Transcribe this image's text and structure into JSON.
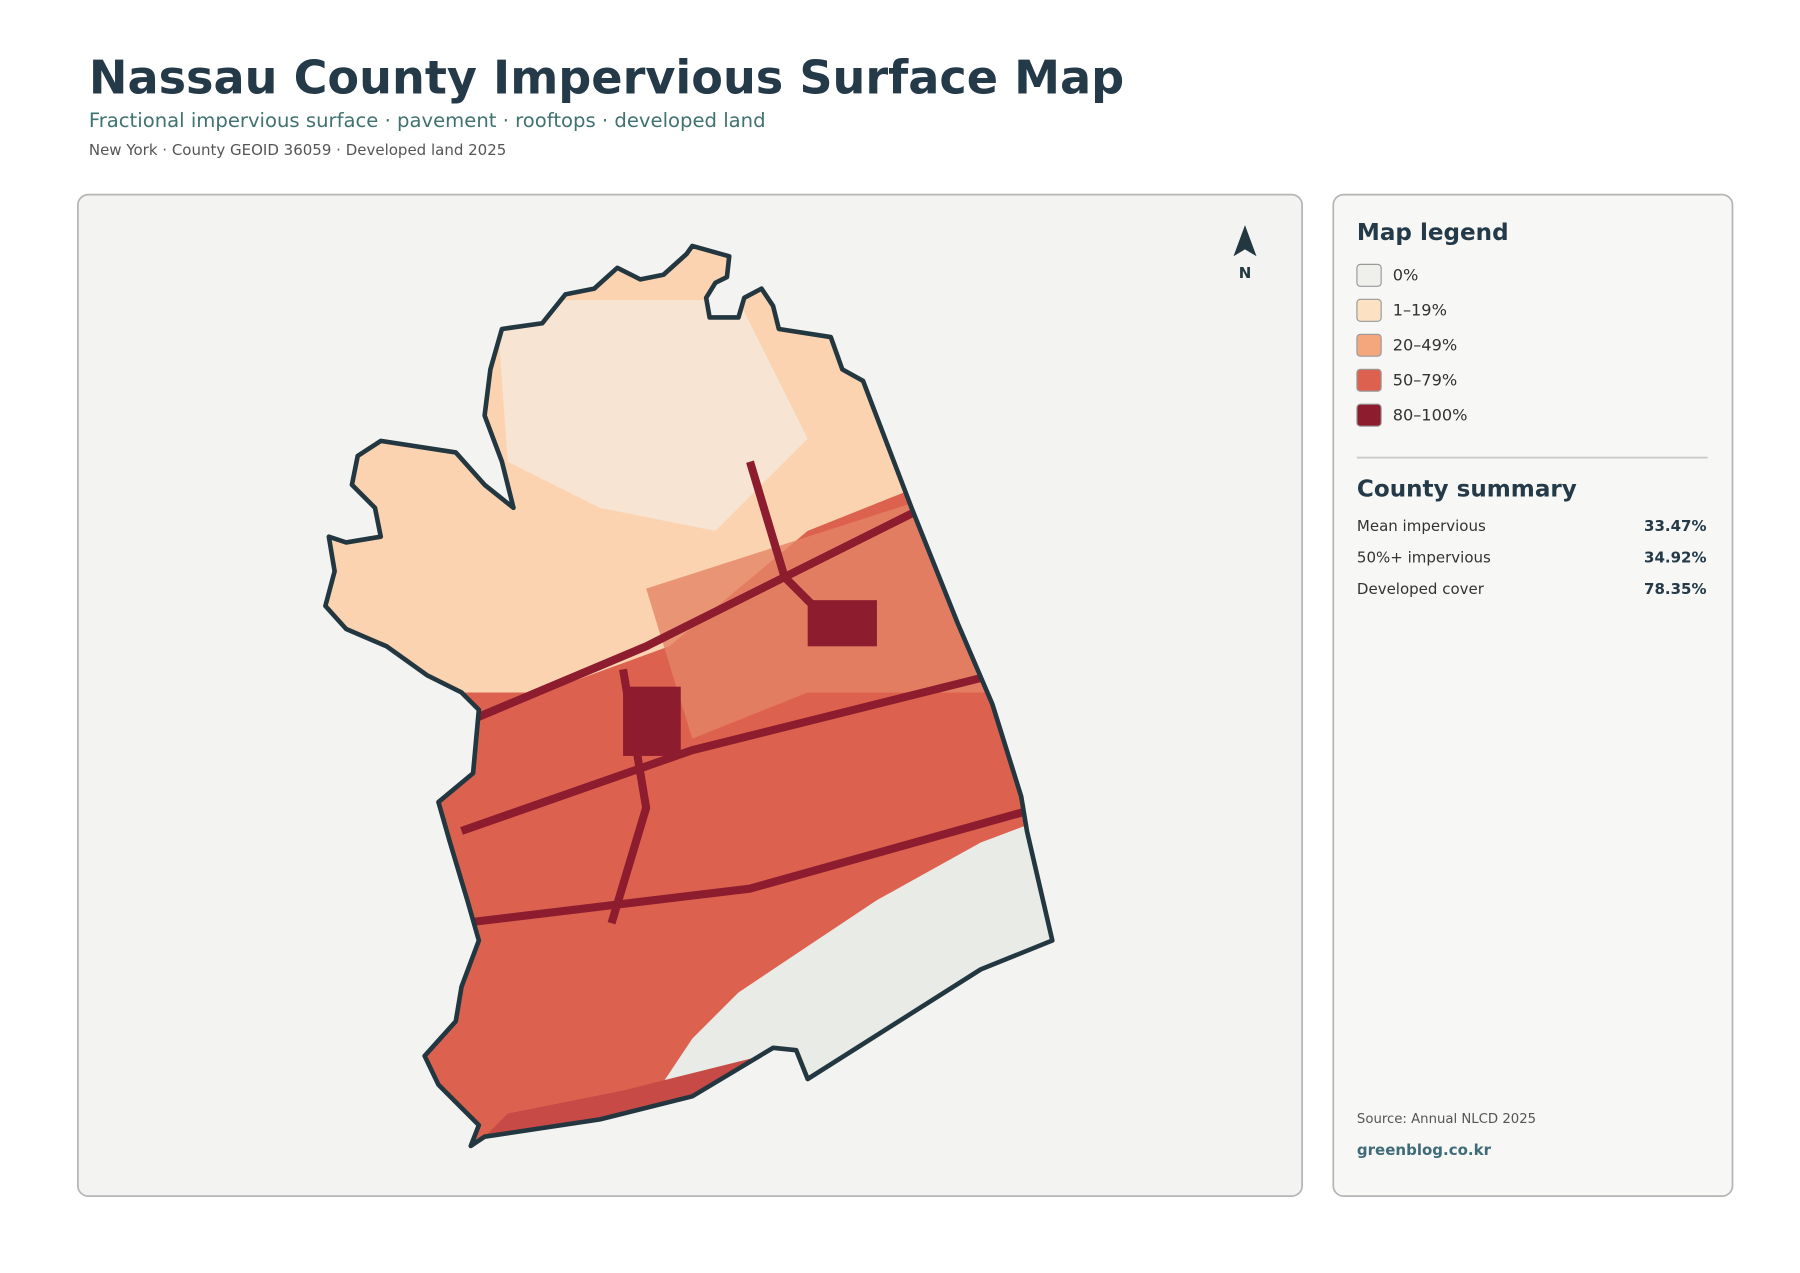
{
  "header": {
    "title": "Nassau County Impervious Surface Map",
    "subtitle": "Fractional impervious surface · pavement · rooftops · developed land",
    "meta": "New York · County GEOID 36059 · Developed land 2025"
  },
  "map": {
    "north_label": "N"
  },
  "legend": {
    "title": "Map legend",
    "items": [
      {
        "label": "0%",
        "color": "#efefec"
      },
      {
        "label": "1–19%",
        "color": "#fde1c3"
      },
      {
        "label": "20–49%",
        "color": "#f4a67c"
      },
      {
        "label": "50–79%",
        "color": "#dc624f"
      },
      {
        "label": "80–100%",
        "color": "#8c1c2e"
      }
    ]
  },
  "summary": {
    "title": "County summary",
    "rows": [
      {
        "label": "Mean impervious",
        "value": "33.47%"
      },
      {
        "label": "50%+ impervious",
        "value": "34.92%"
      },
      {
        "label": "Developed cover",
        "value": "78.35%"
      }
    ]
  },
  "footer": {
    "source": "Source: Annual NLCD 2025",
    "site": "greenblog.co.kr"
  }
}
